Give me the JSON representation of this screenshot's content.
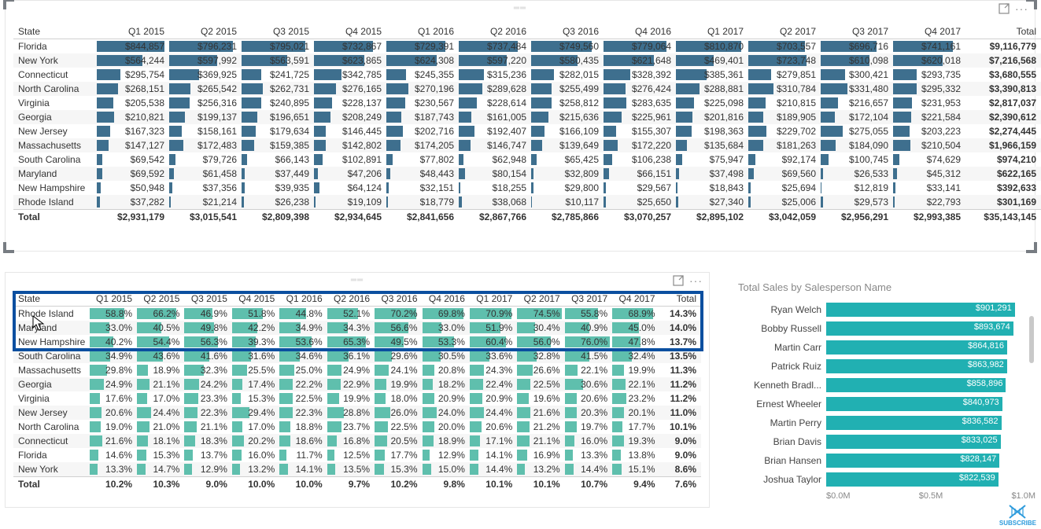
{
  "colors": {
    "databar_blue": "#3e6f8e",
    "databar_teal": "#5fbfad",
    "chartbar_teal": "#21b0b2",
    "highlight_border": "#0b4fa0",
    "stripe_bg": "#f6f6f6",
    "subscribe_blue": "#2d9bdc",
    "scroll_thumb": "#c9c9c9"
  },
  "matrix1": {
    "state_header": "State",
    "total_header": "Total",
    "columns": [
      "Q1 2015",
      "Q2 2015",
      "Q3 2015",
      "Q4 2015",
      "Q1 2016",
      "Q2 2016",
      "Q3 2016",
      "Q4 2016",
      "Q1 2017",
      "Q2 2017",
      "Q3 2017",
      "Q4 2017"
    ],
    "col_widths": {
      "state": 106,
      "data": 92,
      "total": 96
    },
    "max_cell_value": 900000,
    "rows": [
      {
        "state": "Florida",
        "values": [
          "$844,857",
          "$796,231",
          "$795,021",
          "$732,867",
          "$729,391",
          "$737,484",
          "$749,560",
          "$779,064",
          "$810,870",
          "$703,557",
          "$696,716",
          "$741,161"
        ],
        "nums": [
          844857,
          796231,
          795021,
          732867,
          729391,
          737484,
          749560,
          779064,
          810870,
          703557,
          696716,
          741161
        ],
        "total": "$9,116,779"
      },
      {
        "state": "New York",
        "values": [
          "$564,244",
          "$597,992",
          "$563,591",
          "$623,865",
          "$624,308",
          "$597,220",
          "$580,435",
          "$621,648",
          "$469,401",
          "$723,748",
          "$610,098",
          "$620,018"
        ],
        "nums": [
          564244,
          597992,
          563591,
          623865,
          624308,
          597220,
          580435,
          621648,
          469401,
          723748,
          610098,
          620018
        ],
        "total": "$7,216,568"
      },
      {
        "state": "Connecticut",
        "values": [
          "$295,754",
          "$369,925",
          "$241,725",
          "$342,785",
          "$245,355",
          "$315,236",
          "$282,015",
          "$328,392",
          "$385,361",
          "$279,851",
          "$300,421",
          "$293,735"
        ],
        "nums": [
          295754,
          369925,
          241725,
          342785,
          245355,
          315236,
          282015,
          328392,
          385361,
          279851,
          300421,
          293735
        ],
        "total": "$3,680,555"
      },
      {
        "state": "North Carolina",
        "values": [
          "$268,151",
          "$265,542",
          "$262,731",
          "$276,165",
          "$270,196",
          "$289,628",
          "$255,499",
          "$276,424",
          "$288,881",
          "$310,784",
          "$331,480",
          "$295,332"
        ],
        "nums": [
          268151,
          265542,
          262731,
          276165,
          270196,
          289628,
          255499,
          276424,
          288881,
          310784,
          331480,
          295332
        ],
        "total": "$3,390,813"
      },
      {
        "state": "Virginia",
        "values": [
          "$205,538",
          "$256,316",
          "$240,895",
          "$228,137",
          "$230,567",
          "$228,614",
          "$258,812",
          "$283,635",
          "$225,098",
          "$210,815",
          "$216,657",
          "$231,953"
        ],
        "nums": [
          205538,
          256316,
          240895,
          228137,
          230567,
          228614,
          258812,
          283635,
          225098,
          210815,
          216657,
          231953
        ],
        "total": "$2,817,037"
      },
      {
        "state": "Georgia",
        "values": [
          "$210,821",
          "$199,137",
          "$196,651",
          "$208,249",
          "$187,743",
          "$161,005",
          "$215,636",
          "$225,961",
          "$201,816",
          "$189,905",
          "$172,104",
          "$221,584"
        ],
        "nums": [
          210821,
          199137,
          196651,
          208249,
          187743,
          161005,
          215636,
          225961,
          201816,
          189905,
          172104,
          221584
        ],
        "total": "$2,390,612"
      },
      {
        "state": "New Jersey",
        "values": [
          "$167,323",
          "$158,161",
          "$179,634",
          "$146,445",
          "$202,716",
          "$192,407",
          "$166,109",
          "$155,307",
          "$198,363",
          "$229,702",
          "$275,055",
          "$203,223"
        ],
        "nums": [
          167323,
          158161,
          179634,
          146445,
          202716,
          192407,
          166109,
          155307,
          198363,
          229702,
          275055,
          203223
        ],
        "total": "$2,274,445"
      },
      {
        "state": "Massachusetts",
        "values": [
          "$147,127",
          "$172,483",
          "$159,385",
          "$142,802",
          "$174,205",
          "$146,747",
          "$139,649",
          "$172,220",
          "$135,684",
          "$181,263",
          "$184,090",
          "$210,504"
        ],
        "nums": [
          147127,
          172483,
          159385,
          142802,
          174205,
          146747,
          139649,
          172220,
          135684,
          181263,
          184090,
          210504
        ],
        "total": "$1,966,159"
      },
      {
        "state": "South Carolina",
        "values": [
          "$69,542",
          "$79,726",
          "$66,143",
          "$102,891",
          "$77,802",
          "$62,948",
          "$65,425",
          "$106,238",
          "$75,947",
          "$92,174",
          "$100,745",
          "$74,629"
        ],
        "nums": [
          69542,
          79726,
          66143,
          102891,
          77802,
          62948,
          65425,
          106238,
          75947,
          92174,
          100745,
          74629
        ],
        "total": "$974,210"
      },
      {
        "state": "Maryland",
        "values": [
          "$69,592",
          "$61,458",
          "$37,449",
          "$47,206",
          "$48,443",
          "$80,154",
          "$32,809",
          "$66,151",
          "$37,498",
          "$69,560",
          "$26,533",
          "$45,312"
        ],
        "nums": [
          69592,
          61458,
          37449,
          47206,
          48443,
          80154,
          32809,
          66151,
          37498,
          69560,
          26533,
          45312
        ],
        "total": "$622,165"
      },
      {
        "state": "New Hampshire",
        "values": [
          "$50,948",
          "$37,356",
          "$39,935",
          "$64,124",
          "$32,151",
          "$18,255",
          "$29,800",
          "$29,567",
          "$18,843",
          "$25,694",
          "$12,819",
          "$33,141"
        ],
        "nums": [
          50948,
          37356,
          39935,
          64124,
          32151,
          18255,
          29800,
          29567,
          18843,
          25694,
          12819,
          33141
        ],
        "total": "$392,633"
      },
      {
        "state": "Rhode Island",
        "values": [
          "$37,282",
          "$21,214",
          "$26,238",
          "$19,109",
          "$18,779",
          "$38,068",
          "$10,117",
          "$25,650",
          "$27,340",
          "$25,006",
          "$29,573",
          "$22,793"
        ],
        "nums": [
          37282,
          21214,
          26238,
          19109,
          18779,
          38068,
          10117,
          25650,
          27340,
          25006,
          29573,
          22793
        ],
        "total": "$301,169"
      }
    ],
    "totals_row": {
      "label": "Total",
      "values": [
        "$2,931,179",
        "$3,015,541",
        "$2,809,398",
        "$2,934,645",
        "$2,841,656",
        "$2,867,766",
        "$2,785,866",
        "$3,070,257",
        "$2,895,102",
        "$3,042,059",
        "$2,956,291",
        "$2,993,385"
      ],
      "total": "$35,143,145"
    }
  },
  "matrix2": {
    "state_header": "State",
    "total_header": "Total",
    "columns": [
      "Q1 2015",
      "Q2 2015",
      "Q3 2015",
      "Q4 2015",
      "Q1 2016",
      "Q2 2016",
      "Q3 2016",
      "Q4 2016",
      "Q1 2017",
      "Q2 2017",
      "Q3 2017",
      "Q4 2017"
    ],
    "col_widths": {
      "state": 96,
      "data": 60,
      "total": 52
    },
    "max_cell_value": 80,
    "highlight_rows": 3,
    "rows": [
      {
        "state": "Rhode Island",
        "values": [
          "58.8%",
          "66.2%",
          "46.9%",
          "51.8%",
          "44.8%",
          "52.1%",
          "70.2%",
          "69.8%",
          "70.9%",
          "74.5%",
          "55.8%",
          "68.9%"
        ],
        "nums": [
          58.8,
          66.2,
          46.9,
          51.8,
          44.8,
          52.1,
          70.2,
          69.8,
          70.9,
          74.5,
          55.8,
          68.9
        ],
        "total": "14.3%"
      },
      {
        "state": "Maryland",
        "values": [
          "33.0%",
          "40.5%",
          "49.8%",
          "42.2%",
          "34.9%",
          "34.3%",
          "56.6%",
          "33.0%",
          "51.9%",
          "30.4%",
          "40.9%",
          "45.0%"
        ],
        "nums": [
          33.0,
          40.5,
          49.8,
          42.2,
          34.9,
          34.3,
          56.6,
          33.0,
          51.9,
          30.4,
          40.9,
          45.0
        ],
        "total": "14.0%"
      },
      {
        "state": "New Hampshire",
        "values": [
          "40.2%",
          "54.4%",
          "56.3%",
          "39.3%",
          "53.6%",
          "65.3%",
          "49.5%",
          "53.3%",
          "60.4%",
          "56.0%",
          "76.0%",
          "47.8%"
        ],
        "nums": [
          40.2,
          54.4,
          56.3,
          39.3,
          53.6,
          65.3,
          49.5,
          53.3,
          60.4,
          56.0,
          76.0,
          47.8
        ],
        "total": "13.7%"
      },
      {
        "state": "South Carolina",
        "values": [
          "34.9%",
          "43.6%",
          "41.6%",
          "31.6%",
          "34.6%",
          "36.1%",
          "29.6%",
          "30.5%",
          "33.6%",
          "32.8%",
          "41.5%",
          "32.4%"
        ],
        "nums": [
          34.9,
          43.6,
          41.6,
          31.6,
          34.6,
          36.1,
          29.6,
          30.5,
          33.6,
          32.8,
          41.5,
          32.4
        ],
        "total": "13.5%"
      },
      {
        "state": "Massachusetts",
        "values": [
          "29.8%",
          "18.9%",
          "32.3%",
          "25.5%",
          "25.0%",
          "24.9%",
          "24.1%",
          "20.8%",
          "24.3%",
          "26.6%",
          "22.1%",
          "19.9%"
        ],
        "nums": [
          29.8,
          18.9,
          32.3,
          25.5,
          25.0,
          24.9,
          24.1,
          20.8,
          24.3,
          26.6,
          22.1,
          19.9
        ],
        "total": "11.3%"
      },
      {
        "state": "Georgia",
        "values": [
          "24.9%",
          "21.1%",
          "24.2%",
          "17.4%",
          "22.2%",
          "22.9%",
          "19.9%",
          "18.2%",
          "22.4%",
          "22.5%",
          "30.6%",
          "22.1%"
        ],
        "nums": [
          24.9,
          21.1,
          24.2,
          17.4,
          22.2,
          22.9,
          19.9,
          18.2,
          22.4,
          22.5,
          30.6,
          22.1
        ],
        "total": "11.2%"
      },
      {
        "state": "Virginia",
        "values": [
          "17.6%",
          "17.0%",
          "23.3%",
          "15.3%",
          "22.5%",
          "19.9%",
          "18.0%",
          "20.9%",
          "20.9%",
          "19.6%",
          "20.6%",
          "23.2%"
        ],
        "nums": [
          17.6,
          17.0,
          23.3,
          15.3,
          22.5,
          19.9,
          18.0,
          20.9,
          20.9,
          19.6,
          20.6,
          23.2
        ],
        "total": "11.2%"
      },
      {
        "state": "New Jersey",
        "values": [
          "20.6%",
          "24.4%",
          "22.3%",
          "29.4%",
          "22.3%",
          "28.8%",
          "26.0%",
          "24.0%",
          "24.4%",
          "21.6%",
          "20.3%",
          "20.1%"
        ],
        "nums": [
          20.6,
          24.4,
          22.3,
          29.4,
          22.3,
          28.8,
          26.0,
          24.0,
          24.4,
          21.6,
          20.3,
          20.1
        ],
        "total": "11.0%"
      },
      {
        "state": "North Carolina",
        "values": [
          "19.0%",
          "21.0%",
          "21.1%",
          "17.0%",
          "18.8%",
          "23.7%",
          "22.5%",
          "20.0%",
          "20.6%",
          "21.2%",
          "19.7%",
          "17.7%"
        ],
        "nums": [
          19.0,
          21.0,
          21.1,
          17.0,
          18.8,
          23.7,
          22.5,
          20.0,
          20.6,
          21.2,
          19.7,
          17.7
        ],
        "total": "10.1%"
      },
      {
        "state": "Connecticut",
        "values": [
          "21.6%",
          "18.1%",
          "18.3%",
          "20.2%",
          "18.6%",
          "16.8%",
          "20.5%",
          "18.9%",
          "17.1%",
          "21.1%",
          "16.0%",
          "19.3%"
        ],
        "nums": [
          21.6,
          18.1,
          18.3,
          20.2,
          18.6,
          16.8,
          20.5,
          18.9,
          17.1,
          21.1,
          16.0,
          19.3
        ],
        "total": "9.0%"
      },
      {
        "state": "Florida",
        "values": [
          "14.6%",
          "15.3%",
          "13.7%",
          "16.0%",
          "11.7%",
          "12.5%",
          "17.7%",
          "12.9%",
          "14.1%",
          "16.9%",
          "13.3%",
          "13.8%"
        ],
        "nums": [
          14.6,
          15.3,
          13.7,
          16.0,
          11.7,
          12.5,
          17.7,
          12.9,
          14.1,
          16.9,
          13.3,
          13.8
        ],
        "total": "9.0%"
      },
      {
        "state": "New York",
        "values": [
          "13.3%",
          "14.7%",
          "12.9%",
          "13.2%",
          "14.1%",
          "13.5%",
          "15.3%",
          "15.0%",
          "14.4%",
          "13.2%",
          "14.4%",
          "15.1%"
        ],
        "nums": [
          13.3,
          14.7,
          12.9,
          13.2,
          14.1,
          13.5,
          15.3,
          15.0,
          14.4,
          13.2,
          14.4,
          15.1
        ],
        "total": "8.6%"
      }
    ],
    "totals_row": {
      "label": "Total",
      "values": [
        "10.2%",
        "10.3%",
        "9.0%",
        "10.0%",
        "10.0%",
        "9.7%",
        "10.2%",
        "9.8%",
        "10.1%",
        "10.1%",
        "10.7%",
        "9.4%"
      ],
      "total": "7.6%"
    }
  },
  "barchart": {
    "title": "Total Sales by Salesperson Name",
    "max_value": 1000000,
    "axis_ticks": [
      "$0.0M",
      "$0.5M",
      "$1.0M"
    ],
    "bars": [
      {
        "label": "Ryan Welch",
        "value": 901291,
        "text": "$901,291"
      },
      {
        "label": "Bobby Russell",
        "value": 893674,
        "text": "$893,674"
      },
      {
        "label": "Martin Carr",
        "value": 864816,
        "text": "$864,816"
      },
      {
        "label": "Patrick Ruiz",
        "value": 863982,
        "text": "$863,982"
      },
      {
        "label": "Kenneth Bradl...",
        "value": 858896,
        "text": "$858,896"
      },
      {
        "label": "Ernest Wheeler",
        "value": 840973,
        "text": "$840,973"
      },
      {
        "label": "Martin Perry",
        "value": 836582,
        "text": "$836,582"
      },
      {
        "label": "Brian Davis",
        "value": 833025,
        "text": "$833,025"
      },
      {
        "label": "Brian Hansen",
        "value": 828147,
        "text": "$828,147"
      },
      {
        "label": "Joshua Taylor",
        "value": 822539,
        "text": "$822,539"
      }
    ]
  },
  "subscribe_label": "SUBSCRIBE"
}
